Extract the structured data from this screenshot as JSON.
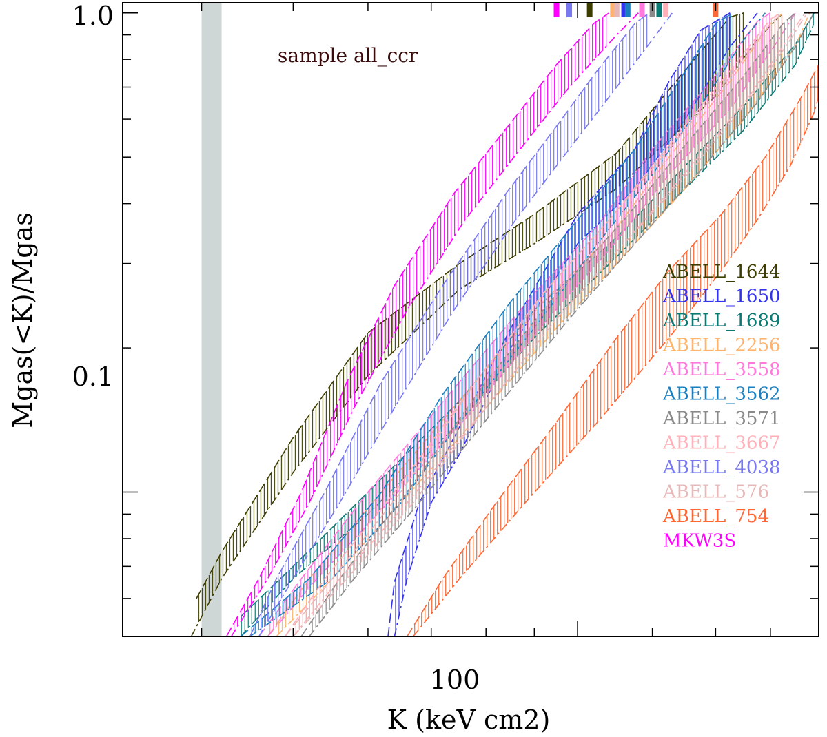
{
  "chart_data": {
    "type": "area",
    "xlabel": "K (keV cm2)",
    "ylabel": "Mgas(<K)/Mgas",
    "xscale": "log",
    "yscale": "log",
    "xlim": [
      33,
      180
    ],
    "ylim": [
      0.05,
      1.05
    ],
    "x_tick_labels": [
      {
        "value": 100,
        "label": "100"
      }
    ],
    "y_tick_labels": [
      {
        "value": 0.1,
        "label": "0.1"
      },
      {
        "value": 1.0,
        "label": "1.0"
      }
    ],
    "annotation": "sample all_ccr",
    "shaded_band": {
      "x": [
        40,
        42
      ]
    },
    "legend_position": "right",
    "series": [
      {
        "name": "ABELL_1644",
        "color": "#3d3d00",
        "lower": [
          [
            39,
            0.05
          ],
          [
            42,
            0.066
          ],
          [
            50,
            0.11
          ],
          [
            60,
            0.175
          ],
          [
            75,
            0.265
          ],
          [
            90,
            0.33
          ],
          [
            110,
            0.43
          ],
          [
            140,
            0.67
          ],
          [
            155,
            0.88
          ],
          [
            165,
            1.0
          ]
        ],
        "upper": [
          [
            39.5,
            0.06
          ],
          [
            42,
            0.075
          ],
          [
            50,
            0.13
          ],
          [
            60,
            0.215
          ],
          [
            75,
            0.3
          ],
          [
            90,
            0.38
          ],
          [
            110,
            0.51
          ],
          [
            130,
            0.76
          ],
          [
            145,
            0.98
          ],
          [
            150,
            1.0
          ]
        ],
        "marker_x": 103
      },
      {
        "name": "ABELL_1650",
        "color": "#3333ee",
        "lower": [
          [
            64,
            0.05
          ],
          [
            66,
            0.066
          ],
          [
            70,
            0.095
          ],
          [
            75,
            0.12
          ],
          [
            85,
            0.2
          ],
          [
            100,
            0.33
          ],
          [
            115,
            0.43
          ],
          [
            130,
            0.6
          ],
          [
            145,
            0.85
          ],
          [
            155,
            1.0
          ]
        ],
        "upper": [
          [
            63,
            0.05
          ],
          [
            64,
            0.065
          ],
          [
            68,
            0.095
          ],
          [
            74,
            0.13
          ],
          [
            85,
            0.22
          ],
          [
            100,
            0.38
          ],
          [
            115,
            0.52
          ],
          [
            125,
            0.72
          ],
          [
            135,
            0.92
          ],
          [
            145,
            1.0
          ]
        ],
        "marker_x": 112
      },
      {
        "name": "ABELL_1689",
        "color": "#0a7a74",
        "lower": [
          [
            44,
            0.05
          ],
          [
            50,
            0.066
          ],
          [
            60,
            0.09
          ],
          [
            75,
            0.14
          ],
          [
            90,
            0.21
          ],
          [
            110,
            0.31
          ],
          [
            130,
            0.43
          ],
          [
            150,
            0.57
          ],
          [
            170,
            0.78
          ],
          [
            178,
            0.95
          ]
        ],
        "upper": [
          [
            44,
            0.055
          ],
          [
            50,
            0.07
          ],
          [
            60,
            0.1
          ],
          [
            75,
            0.155
          ],
          [
            90,
            0.24
          ],
          [
            110,
            0.34
          ],
          [
            130,
            0.48
          ],
          [
            150,
            0.64
          ],
          [
            170,
            0.86
          ],
          [
            178,
            1.0
          ]
        ],
        "marker_x": 122
      },
      {
        "name": "ABELL_2256",
        "color": "#ffb46e",
        "lower": [
          [
            48,
            0.05
          ],
          [
            55,
            0.066
          ],
          [
            65,
            0.095
          ],
          [
            80,
            0.15
          ],
          [
            95,
            0.22
          ],
          [
            110,
            0.3
          ],
          [
            130,
            0.43
          ],
          [
            150,
            0.6
          ],
          [
            170,
            0.85
          ],
          [
            176,
            1.0
          ]
        ],
        "upper": [
          [
            47,
            0.05
          ],
          [
            52,
            0.066
          ],
          [
            62,
            0.1
          ],
          [
            78,
            0.17
          ],
          [
            92,
            0.25
          ],
          [
            108,
            0.34
          ],
          [
            125,
            0.5
          ],
          [
            145,
            0.72
          ],
          [
            160,
            0.95
          ],
          [
            165,
            1.0
          ]
        ],
        "marker_x": 109
      },
      {
        "name": "ABELL_3558",
        "color": "#ff78dc",
        "lower": [
          [
            47,
            0.05
          ],
          [
            53,
            0.066
          ],
          [
            63,
            0.095
          ],
          [
            78,
            0.15
          ],
          [
            93,
            0.23
          ],
          [
            108,
            0.32
          ],
          [
            125,
            0.46
          ],
          [
            145,
            0.63
          ],
          [
            162,
            0.86
          ],
          [
            170,
            1.0
          ]
        ],
        "upper": [
          [
            46,
            0.05
          ],
          [
            51,
            0.066
          ],
          [
            60,
            0.1
          ],
          [
            75,
            0.17
          ],
          [
            90,
            0.26
          ],
          [
            105,
            0.36
          ],
          [
            120,
            0.52
          ],
          [
            140,
            0.74
          ],
          [
            155,
            0.96
          ],
          [
            160,
            1.0
          ]
        ],
        "marker_x": 117
      },
      {
        "name": "ABELL_3562",
        "color": "#1a7fbf",
        "lower": [
          [
            45,
            0.05
          ],
          [
            55,
            0.066
          ],
          [
            65,
            0.095
          ],
          [
            75,
            0.14
          ],
          [
            90,
            0.22
          ],
          [
            105,
            0.33
          ],
          [
            120,
            0.46
          ],
          [
            135,
            0.64
          ],
          [
            150,
            0.88
          ],
          [
            158,
            1.0
          ]
        ],
        "upper": [
          [
            44,
            0.05
          ],
          [
            52,
            0.066
          ],
          [
            62,
            0.1
          ],
          [
            72,
            0.16
          ],
          [
            85,
            0.25
          ],
          [
            100,
            0.37
          ],
          [
            115,
            0.52
          ],
          [
            128,
            0.72
          ],
          [
            140,
            0.95
          ],
          [
            146,
            1.0
          ]
        ],
        "marker_x": 113
      },
      {
        "name": "ABELL_3571",
        "color": "#8a8a8a",
        "lower": [
          [
            52,
            0.05
          ],
          [
            58,
            0.066
          ],
          [
            68,
            0.095
          ],
          [
            82,
            0.15
          ],
          [
            98,
            0.23
          ],
          [
            115,
            0.33
          ],
          [
            135,
            0.47
          ],
          [
            155,
            0.65
          ],
          [
            170,
            0.85
          ],
          [
            178,
            1.0
          ]
        ],
        "upper": [
          [
            51,
            0.05
          ],
          [
            56,
            0.066
          ],
          [
            66,
            0.1
          ],
          [
            80,
            0.17
          ],
          [
            95,
            0.26
          ],
          [
            112,
            0.37
          ],
          [
            130,
            0.53
          ],
          [
            150,
            0.74
          ],
          [
            165,
            0.95
          ],
          [
            170,
            1.0
          ]
        ],
        "marker_x": 120
      },
      {
        "name": "ABELL_3667",
        "color": "#ffb0b8",
        "lower": [
          [
            50,
            0.05
          ],
          [
            56,
            0.066
          ],
          [
            66,
            0.095
          ],
          [
            80,
            0.15
          ],
          [
            95,
            0.23
          ],
          [
            112,
            0.33
          ],
          [
            132,
            0.48
          ],
          [
            152,
            0.67
          ],
          [
            168,
            0.9
          ],
          [
            174,
            1.0
          ]
        ],
        "upper": [
          [
            49,
            0.05
          ],
          [
            54,
            0.066
          ],
          [
            64,
            0.1
          ],
          [
            78,
            0.17
          ],
          [
            92,
            0.26
          ],
          [
            108,
            0.37
          ],
          [
            126,
            0.54
          ],
          [
            146,
            0.77
          ],
          [
            160,
            0.97
          ],
          [
            164,
            1.0
          ]
        ],
        "marker_x": 124
      },
      {
        "name": "ABELL_4038",
        "color": "#7878f0",
        "lower": [
          [
            46,
            0.05
          ],
          [
            50,
            0.066
          ],
          [
            56,
            0.095
          ],
          [
            64,
            0.15
          ],
          [
            74,
            0.24
          ],
          [
            86,
            0.37
          ],
          [
            98,
            0.52
          ],
          [
            110,
            0.7
          ],
          [
            120,
            0.88
          ],
          [
            126,
            1.0
          ]
        ],
        "upper": [
          [
            45,
            0.05
          ],
          [
            48,
            0.066
          ],
          [
            54,
            0.1
          ],
          [
            62,
            0.17
          ],
          [
            72,
            0.27
          ],
          [
            84,
            0.42
          ],
          [
            95,
            0.58
          ],
          [
            105,
            0.76
          ],
          [
            115,
            0.95
          ],
          [
            119,
            1.0
          ]
        ],
        "marker_x": 98
      },
      {
        "name": "ABELL_576",
        "color": "#e8b8b8",
        "lower": [
          [
            50,
            0.05
          ],
          [
            57,
            0.066
          ],
          [
            67,
            0.095
          ],
          [
            80,
            0.15
          ],
          [
            95,
            0.23
          ],
          [
            112,
            0.33
          ],
          [
            132,
            0.47
          ],
          [
            152,
            0.66
          ],
          [
            168,
            0.88
          ],
          [
            175,
            1.0
          ]
        ],
        "upper": [
          [
            49,
            0.05
          ],
          [
            55,
            0.066
          ],
          [
            65,
            0.1
          ],
          [
            78,
            0.17
          ],
          [
            92,
            0.26
          ],
          [
            108,
            0.37
          ],
          [
            126,
            0.53
          ],
          [
            146,
            0.75
          ],
          [
            160,
            0.95
          ],
          [
            165,
            1.0
          ]
        ],
        "marker_x": 110
      },
      {
        "name": "ABELL_754",
        "color": "#ff6633",
        "lower": [
          [
            67,
            0.05
          ],
          [
            75,
            0.066
          ],
          [
            88,
            0.095
          ],
          [
            105,
            0.14
          ],
          [
            125,
            0.21
          ],
          [
            142,
            0.29
          ],
          [
            155,
            0.37
          ],
          [
            168,
            0.48
          ],
          [
            178,
            0.62
          ],
          [
            180,
            0.67
          ]
        ],
        "upper": [
          [
            66,
            0.05
          ],
          [
            72,
            0.066
          ],
          [
            82,
            0.095
          ],
          [
            95,
            0.14
          ],
          [
            110,
            0.21
          ],
          [
            125,
            0.29
          ],
          [
            142,
            0.38
          ],
          [
            158,
            0.5
          ],
          [
            172,
            0.66
          ],
          [
            180,
            0.78
          ]
        ],
        "marker_x": 140
      },
      {
        "name": "MKW3S",
        "color": "#ff00ff",
        "lower": [
          [
            43,
            0.05
          ],
          [
            47,
            0.066
          ],
          [
            52,
            0.095
          ],
          [
            58,
            0.15
          ],
          [
            66,
            0.24
          ],
          [
            76,
            0.37
          ],
          [
            87,
            0.52
          ],
          [
            98,
            0.7
          ],
          [
            110,
            0.9
          ],
          [
            116,
            1.0
          ]
        ],
        "upper": [
          [
            42.5,
            0.05
          ],
          [
            46,
            0.066
          ],
          [
            51,
            0.1
          ],
          [
            57,
            0.17
          ],
          [
            64,
            0.27
          ],
          [
            74,
            0.42
          ],
          [
            85,
            0.59
          ],
          [
            95,
            0.78
          ],
          [
            104,
            0.95
          ],
          [
            108,
            1.0
          ]
        ],
        "marker_x": 95
      }
    ]
  }
}
